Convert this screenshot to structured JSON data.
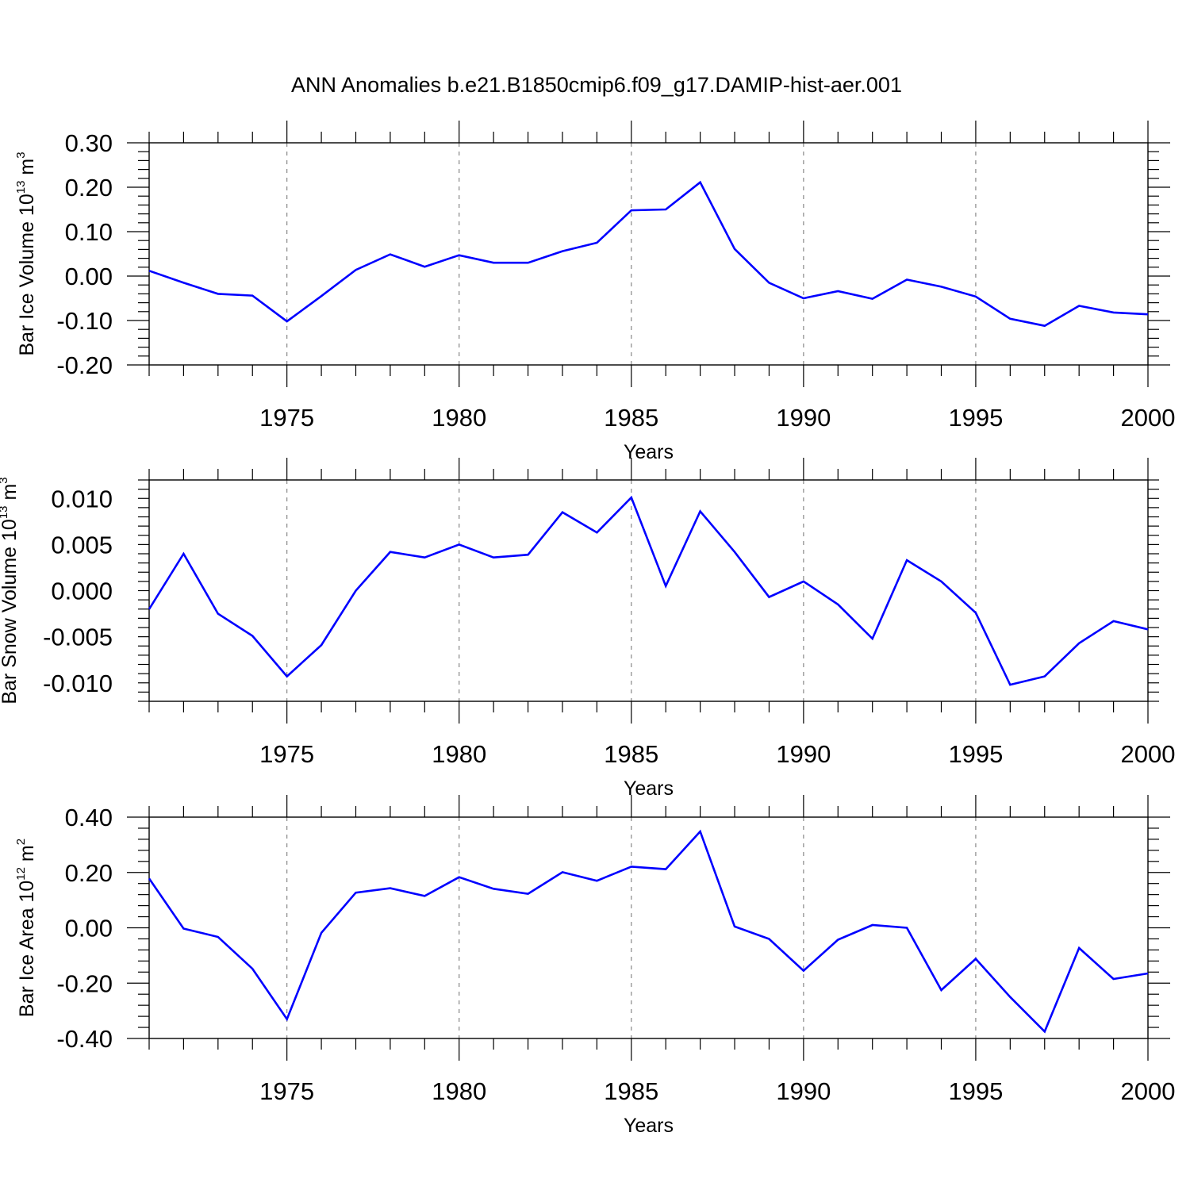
{
  "title": "ANN Anomalies b.e21.B1850cmip6.f09_g17.DAMIP-hist-aer.001",
  "colors": {
    "line": "#0000ff",
    "axis": "#000000",
    "grid": "#888888"
  },
  "chart_data": [
    {
      "type": "line",
      "ylabel": {
        "text": "Bar Ice Volume 10",
        "exponent": "13",
        "unit": " m",
        "unit_exponent": "3"
      },
      "xlabel": "Years",
      "xlim": [
        1971,
        2000
      ],
      "ylim": [
        -0.2,
        0.3
      ],
      "x_ticks": [
        1975,
        1980,
        1985,
        1990,
        1995,
        2000
      ],
      "y_ticks": [
        -0.2,
        -0.1,
        0.0,
        0.1,
        0.2,
        0.3
      ],
      "y_tick_labels": [
        "-0.20",
        "-0.10",
        "0.00",
        "0.10",
        "0.20",
        "0.30"
      ],
      "grid": "vertical dashed at major x ticks",
      "x": [
        1971,
        1972,
        1973,
        1974,
        1975,
        1976,
        1977,
        1978,
        1979,
        1980,
        1981,
        1982,
        1983,
        1984,
        1985,
        1986,
        1987,
        1988,
        1989,
        1990,
        1991,
        1992,
        1993,
        1994,
        1995,
        1996,
        1997,
        1998,
        1999,
        2000
      ],
      "values": [
        0.012,
        -0.015,
        -0.04,
        -0.044,
        -0.102,
        -0.045,
        0.014,
        0.049,
        0.021,
        0.047,
        0.03,
        0.03,
        0.056,
        0.075,
        0.148,
        0.15,
        0.211,
        0.061,
        -0.015,
        -0.05,
        -0.034,
        -0.051,
        -0.008,
        -0.024,
        -0.046,
        -0.096,
        -0.112,
        -0.067,
        -0.082,
        -0.086
      ]
    },
    {
      "type": "line",
      "ylabel": {
        "text": "Bar Snow Volume 10",
        "exponent": "13",
        "unit": " m",
        "unit_exponent": "3"
      },
      "xlabel": "Years",
      "xlim": [
        1971,
        2000
      ],
      "ylim": [
        -0.012,
        0.012
      ],
      "x_ticks": [
        1975,
        1980,
        1985,
        1990,
        1995,
        2000
      ],
      "y_ticks": [
        -0.01,
        -0.005,
        0.0,
        0.005,
        0.01
      ],
      "y_tick_labels": [
        "-0.010",
        "-0.005",
        "0.000",
        "0.005",
        "0.010"
      ],
      "grid": "vertical dashed at major x ticks",
      "x": [
        1971,
        1972,
        1973,
        1974,
        1975,
        1976,
        1977,
        1978,
        1979,
        1980,
        1981,
        1982,
        1983,
        1984,
        1985,
        1986,
        1987,
        1988,
        1989,
        1990,
        1991,
        1992,
        1993,
        1994,
        1995,
        1996,
        1997,
        1998,
        1999,
        2000
      ],
      "values": [
        -0.002,
        0.004,
        -0.0025,
        -0.0049,
        -0.0093,
        -0.0059,
        0.0,
        0.0042,
        0.0036,
        0.005,
        0.0036,
        0.0039,
        0.0085,
        0.0063,
        0.0101,
        0.0005,
        0.0086,
        0.0042,
        -0.0007,
        0.001,
        -0.0015,
        -0.0052,
        0.0033,
        0.001,
        -0.0024,
        -0.0102,
        -0.0093,
        -0.0057,
        -0.0033,
        -0.0042
      ]
    },
    {
      "type": "line",
      "ylabel": {
        "text": "Bar Ice Area 10",
        "exponent": "12",
        "unit": " m",
        "unit_exponent": "2"
      },
      "xlabel": "Years",
      "xlim": [
        1971,
        2000
      ],
      "ylim": [
        -0.4,
        0.4
      ],
      "x_ticks": [
        1975,
        1980,
        1985,
        1990,
        1995,
        2000
      ],
      "y_ticks": [
        -0.4,
        -0.2,
        0.0,
        0.2,
        0.4
      ],
      "y_tick_labels": [
        "-0.40",
        "-0.20",
        "0.00",
        "0.20",
        "0.40"
      ],
      "grid": "vertical dashed at major x ticks",
      "x": [
        1971,
        1972,
        1973,
        1974,
        1975,
        1976,
        1977,
        1978,
        1979,
        1980,
        1981,
        1982,
        1983,
        1984,
        1985,
        1986,
        1987,
        1988,
        1989,
        1990,
        1991,
        1992,
        1993,
        1994,
        1995,
        1996,
        1997,
        1998,
        1999,
        2000
      ],
      "values": [
        0.178,
        -0.003,
        -0.033,
        -0.148,
        -0.33,
        -0.018,
        0.127,
        0.143,
        0.115,
        0.183,
        0.141,
        0.123,
        0.201,
        0.17,
        0.221,
        0.212,
        0.348,
        0.005,
        -0.04,
        -0.155,
        -0.043,
        0.01,
        0.0,
        -0.225,
        -0.112,
        -0.25,
        -0.375,
        -0.073,
        -0.185,
        -0.165
      ]
    }
  ]
}
